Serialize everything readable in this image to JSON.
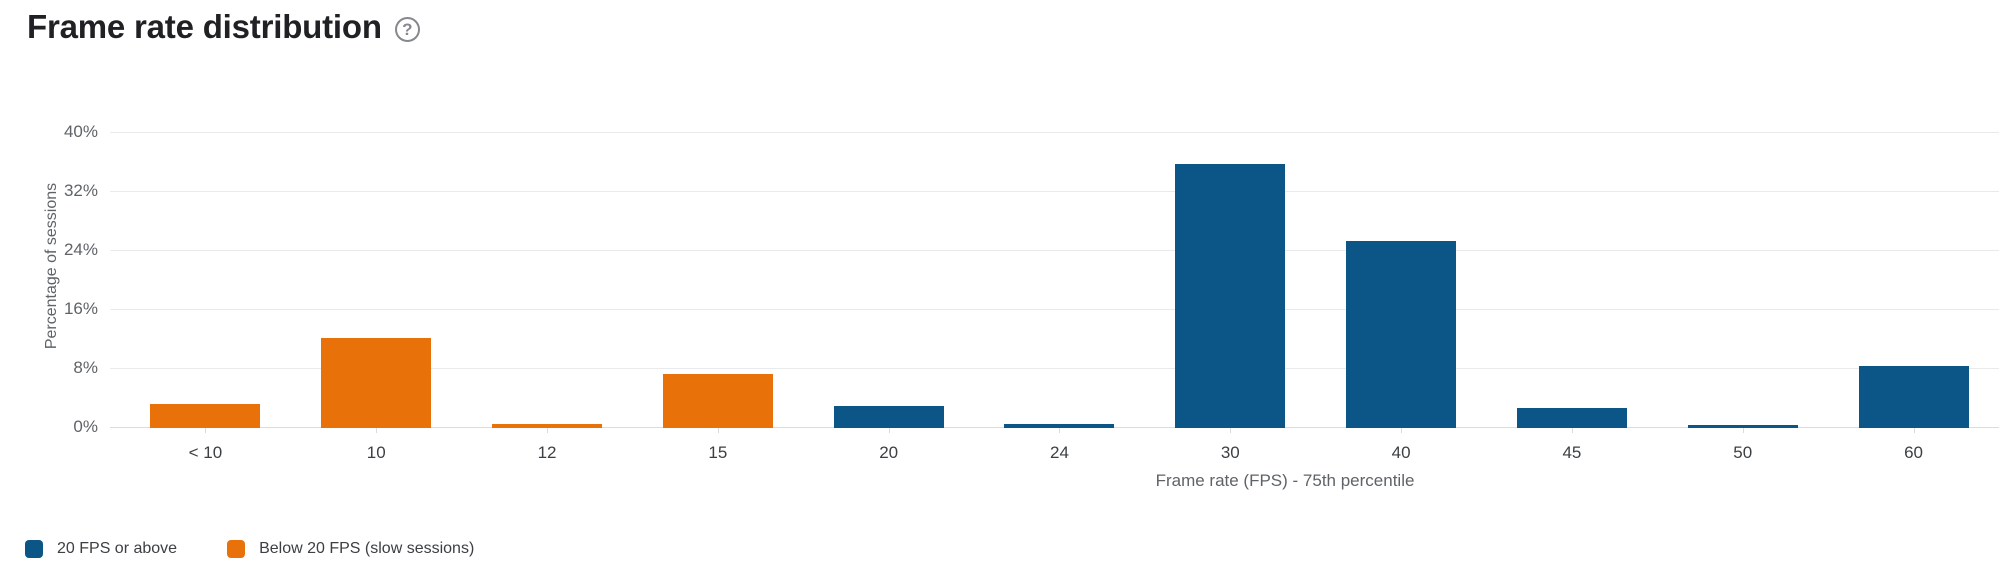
{
  "header": {
    "title": "Frame rate distribution",
    "help_glyph": "?"
  },
  "chart_data": {
    "type": "bar",
    "title": "Frame rate distribution",
    "xlabel": "Frame rate (FPS) - 75th percentile",
    "ylabel": "Percentage of sessions",
    "categories": [
      "< 10",
      "10",
      "12",
      "15",
      "20",
      "24",
      "30",
      "40",
      "45",
      "50",
      "60"
    ],
    "values": [
      3.3,
      12.2,
      0.5,
      7.3,
      3.0,
      0.6,
      35.8,
      25.4,
      2.7,
      0.4,
      8.4
    ],
    "bar_series_index": [
      1,
      1,
      1,
      1,
      0,
      0,
      0,
      0,
      0,
      0,
      0
    ],
    "series": [
      {
        "name": "20 FPS or above",
        "color": "#0b5687"
      },
      {
        "name": "Below 20 FPS (slow sessions)",
        "color": "#e8710a"
      }
    ],
    "y_tick_values": [
      0,
      8,
      16,
      24,
      32,
      40
    ],
    "y_tick_suffix": "%",
    "ylim": [
      0,
      40
    ],
    "grid": true,
    "legend_position": "bottom-left"
  },
  "colors": {
    "gridline": "#e9eaec",
    "axis_line": "#dadce0",
    "tick_text": "#5f6368",
    "x_label_text": "#3c4043",
    "title_text": "#202124",
    "legend_text": "#3c4043",
    "help_icon": "#85898d"
  }
}
